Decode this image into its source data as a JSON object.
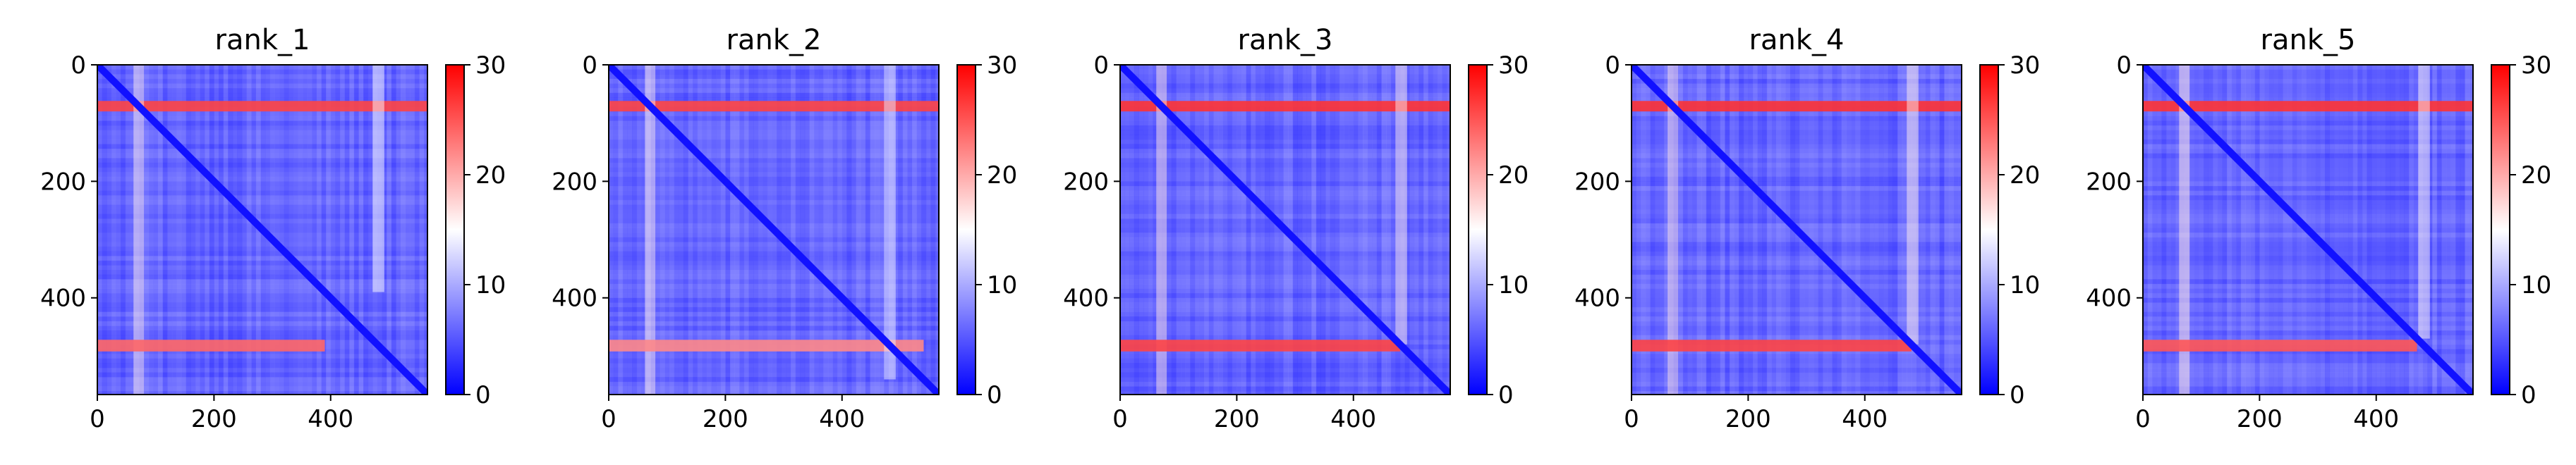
{
  "chart_data": [
    {
      "type": "heatmap",
      "title": "rank_1",
      "matrix_size": 566,
      "x_ticks": [
        0,
        200,
        400
      ],
      "y_ticks": [
        0,
        200,
        400
      ],
      "colorbar": {
        "min": 0,
        "max": 30,
        "ticks": [
          0,
          10,
          20,
          30
        ],
        "colors": [
          "#0000ff",
          "#ffffff",
          "#ff0000"
        ]
      },
      "high_value_bands": [
        {
          "row_range": [
            62,
            80
          ],
          "col_range": [
            0,
            566
          ],
          "value": 26
        },
        {
          "row_range": [
            472,
            492
          ],
          "col_range": [
            0,
            390
          ],
          "value": 24
        }
      ],
      "background_value": 6,
      "diagonal_value": 1
    },
    {
      "type": "heatmap",
      "title": "rank_2",
      "matrix_size": 566,
      "x_ticks": [
        0,
        200,
        400
      ],
      "y_ticks": [
        0,
        200,
        400
      ],
      "colorbar": {
        "min": 0,
        "max": 30,
        "ticks": [
          0,
          10,
          20,
          30
        ],
        "colors": [
          "#0000ff",
          "#ffffff",
          "#ff0000"
        ]
      },
      "high_value_bands": [
        {
          "row_range": [
            62,
            80
          ],
          "col_range": [
            0,
            566
          ],
          "value": 26
        },
        {
          "row_range": [
            472,
            492
          ],
          "col_range": [
            0,
            540
          ],
          "value": 22
        }
      ],
      "background_value": 6,
      "diagonal_value": 1
    },
    {
      "type": "heatmap",
      "title": "rank_3",
      "matrix_size": 566,
      "x_ticks": [
        0,
        200,
        400
      ],
      "y_ticks": [
        0,
        200,
        400
      ],
      "colorbar": {
        "min": 0,
        "max": 30,
        "ticks": [
          0,
          10,
          20,
          30
        ],
        "colors": [
          "#0000ff",
          "#ffffff",
          "#ff0000"
        ]
      },
      "high_value_bands": [
        {
          "row_range": [
            62,
            80
          ],
          "col_range": [
            0,
            566
          ],
          "value": 27
        },
        {
          "row_range": [
            472,
            492
          ],
          "col_range": [
            0,
            480
          ],
          "value": 26
        }
      ],
      "background_value": 6,
      "diagonal_value": 1
    },
    {
      "type": "heatmap",
      "title": "rank_4",
      "matrix_size": 566,
      "x_ticks": [
        0,
        200,
        400
      ],
      "y_ticks": [
        0,
        200,
        400
      ],
      "colorbar": {
        "min": 0,
        "max": 30,
        "ticks": [
          0,
          10,
          20,
          30
        ],
        "colors": [
          "#0000ff",
          "#ffffff",
          "#ff0000"
        ]
      },
      "high_value_bands": [
        {
          "row_range": [
            62,
            80
          ],
          "col_range": [
            0,
            566
          ],
          "value": 27
        },
        {
          "row_range": [
            472,
            492
          ],
          "col_range": [
            0,
            480
          ],
          "value": 26
        }
      ],
      "background_value": 6,
      "diagonal_value": 1
    },
    {
      "type": "heatmap",
      "title": "rank_5",
      "matrix_size": 566,
      "x_ticks": [
        0,
        200,
        400
      ],
      "y_ticks": [
        0,
        200,
        400
      ],
      "colorbar": {
        "min": 0,
        "max": 30,
        "ticks": [
          0,
          10,
          20,
          30
        ],
        "colors": [
          "#0000ff",
          "#ffffff",
          "#ff0000"
        ]
      },
      "high_value_bands": [
        {
          "row_range": [
            62,
            80
          ],
          "col_range": [
            0,
            566
          ],
          "value": 27
        },
        {
          "row_range": [
            472,
            492
          ],
          "col_range": [
            0,
            470
          ],
          "value": 25
        }
      ],
      "background_value": 6,
      "diagonal_value": 1
    }
  ]
}
